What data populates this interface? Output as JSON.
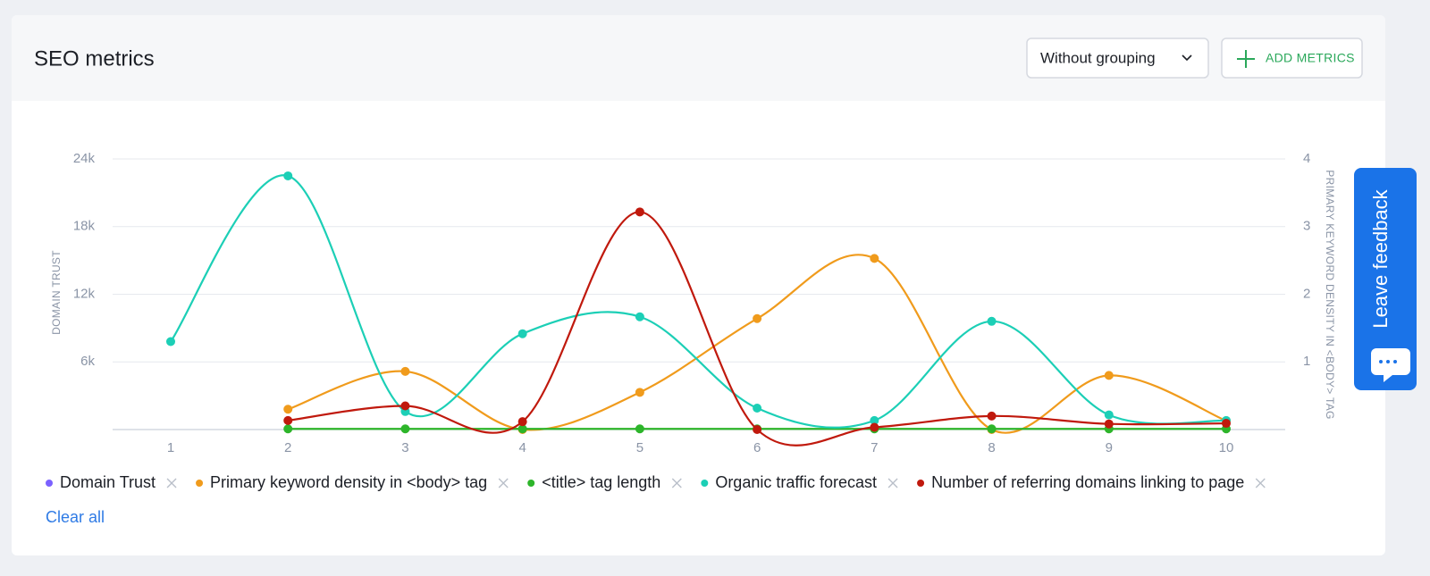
{
  "header": {
    "title": "SEO metrics",
    "grouping": "Without grouping",
    "add_metrics": "ADD METRICS"
  },
  "chart_data": {
    "type": "line",
    "ylabel": "DOMAIN TRUST",
    "y2label": "PRIMARY KEYWORD DENSITY IN <BODY> TAG",
    "categories": [
      "1",
      "2",
      "3",
      "4",
      "5",
      "6",
      "7",
      "8",
      "9",
      "10"
    ],
    "ylim": [
      0,
      24000
    ],
    "yticks": [
      {
        "value": 6000,
        "label": "6k"
      },
      {
        "value": 12000,
        "label": "12k"
      },
      {
        "value": 18000,
        "label": "18k"
      },
      {
        "value": 24000,
        "label": "24k"
      }
    ],
    "y2lim": [
      0,
      4
    ],
    "y2ticks": [
      1,
      2,
      3,
      4
    ],
    "grid": true,
    "series": [
      {
        "name": "Domain Trust",
        "color": "#7b61ff",
        "values": [
          null,
          null,
          null,
          null,
          null,
          null,
          null,
          null,
          null,
          null
        ]
      },
      {
        "name": "Primary keyword density in <body> tag",
        "color": "#f09b1c",
        "axis": "y2",
        "values": [
          null,
          0.3,
          0.86,
          0,
          0.55,
          1.64,
          2.53,
          0,
          0.8,
          0.13
        ]
      },
      {
        "name": "<title> tag length",
        "color": "#2db52a",
        "values": [
          null,
          60,
          60,
          60,
          60,
          60,
          60,
          60,
          60,
          60
        ]
      },
      {
        "name": "Organic traffic forecast",
        "color": "#1ccfb6",
        "values": [
          7800,
          22500,
          1600,
          8500,
          10000,
          1900,
          800,
          9600,
          1300,
          800
        ]
      },
      {
        "name": "Number of referring domains linking to page",
        "color": "#c0190d",
        "values": [
          null,
          800,
          2100,
          700,
          19300,
          0,
          200,
          1200,
          500,
          550
        ]
      }
    ]
  },
  "clear_all": "Clear all",
  "feedback": "Leave feedback"
}
